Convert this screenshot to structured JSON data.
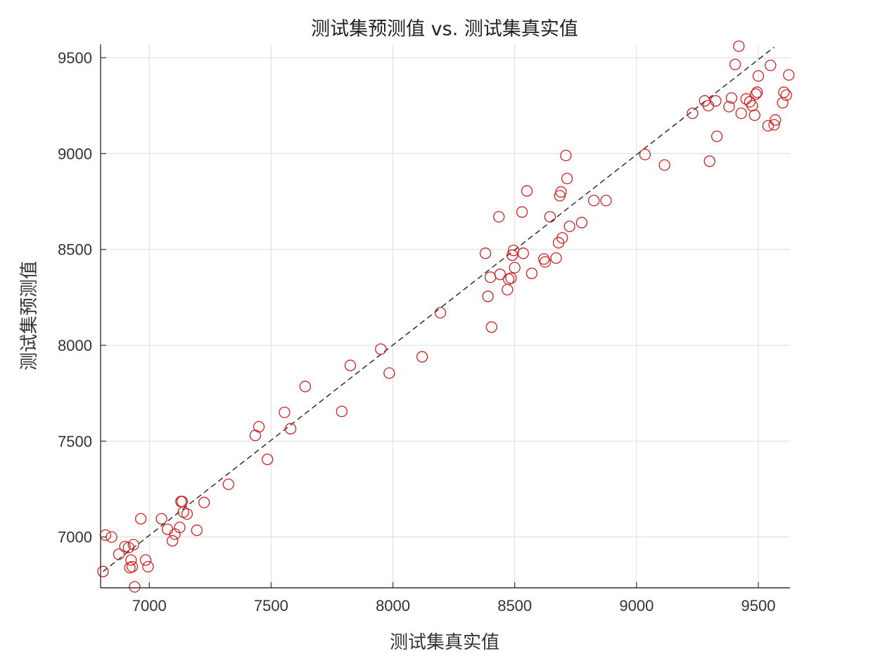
{
  "chart_data": {
    "type": "scatter",
    "title": "测试集预测值 vs. 测试集真实值",
    "xlabel": "测试集真实值",
    "ylabel": "测试集预测值",
    "xlim": [
      6800,
      9630
    ],
    "ylim": [
      6735,
      9570
    ],
    "x_ticks": [
      7000,
      7500,
      8000,
      8500,
      9000,
      9500
    ],
    "y_ticks": [
      7000,
      7500,
      8000,
      8500,
      9000,
      9500
    ],
    "x_tick_labels": [
      "7000",
      "7500",
      "8000",
      "8500",
      "9000",
      "9500"
    ],
    "y_tick_labels": [
      "7000",
      "7500",
      "8000",
      "8500",
      "9000",
      "9500"
    ],
    "grid": true,
    "marker": "open-circle",
    "marker_color": "#cc2222",
    "reference_line": {
      "style": "dashed",
      "color": "#222222",
      "from": [
        6810,
        6820
      ],
      "to": [
        9565,
        9555
      ]
    },
    "points": [
      [
        6810,
        6820
      ],
      [
        6820,
        7010
      ],
      [
        6845,
        7000
      ],
      [
        6875,
        6910
      ],
      [
        6900,
        6950
      ],
      [
        6915,
        6945
      ],
      [
        6920,
        6840
      ],
      [
        6925,
        6880
      ],
      [
        6930,
        6845
      ],
      [
        6935,
        6960
      ],
      [
        6940,
        6740
      ],
      [
        6965,
        7095
      ],
      [
        6985,
        6880
      ],
      [
        6995,
        6845
      ],
      [
        7050,
        7095
      ],
      [
        7075,
        7040
      ],
      [
        7095,
        6980
      ],
      [
        7105,
        7015
      ],
      [
        7125,
        7050
      ],
      [
        7130,
        7185
      ],
      [
        7135,
        7185
      ],
      [
        7140,
        7130
      ],
      [
        7155,
        7120
      ],
      [
        7195,
        7035
      ],
      [
        7225,
        7180
      ],
      [
        7325,
        7275
      ],
      [
        7435,
        7530
      ],
      [
        7450,
        7575
      ],
      [
        7485,
        7405
      ],
      [
        7555,
        7650
      ],
      [
        7580,
        7565
      ],
      [
        7640,
        7785
      ],
      [
        7790,
        7655
      ],
      [
        7825,
        7895
      ],
      [
        7950,
        7980
      ],
      [
        7985,
        7855
      ],
      [
        8120,
        7940
      ],
      [
        8195,
        8170
      ],
      [
        8380,
        8480
      ],
      [
        8390,
        8255
      ],
      [
        8400,
        8355
      ],
      [
        8405,
        8095
      ],
      [
        8435,
        8670
      ],
      [
        8440,
        8370
      ],
      [
        8470,
        8290
      ],
      [
        8475,
        8345
      ],
      [
        8485,
        8350
      ],
      [
        8490,
        8470
      ],
      [
        8495,
        8495
      ],
      [
        8500,
        8405
      ],
      [
        8530,
        8695
      ],
      [
        8535,
        8480
      ],
      [
        8550,
        8805
      ],
      [
        8570,
        8375
      ],
      [
        8620,
        8450
      ],
      [
        8625,
        8435
      ],
      [
        8645,
        8670
      ],
      [
        8670,
        8455
      ],
      [
        8680,
        8535
      ],
      [
        8685,
        8780
      ],
      [
        8690,
        8800
      ],
      [
        8695,
        8560
      ],
      [
        8710,
        8990
      ],
      [
        8715,
        8870
      ],
      [
        8725,
        8620
      ],
      [
        8775,
        8640
      ],
      [
        8825,
        8755
      ],
      [
        8875,
        8755
      ],
      [
        9035,
        8995
      ],
      [
        9115,
        8940
      ],
      [
        9230,
        9210
      ],
      [
        9280,
        9275
      ],
      [
        9295,
        9250
      ],
      [
        9300,
        8960
      ],
      [
        9325,
        9275
      ],
      [
        9330,
        9090
      ],
      [
        9380,
        9245
      ],
      [
        9390,
        9290
      ],
      [
        9405,
        9465
      ],
      [
        9420,
        9560
      ],
      [
        9430,
        9210
      ],
      [
        9450,
        9285
      ],
      [
        9465,
        9270
      ],
      [
        9475,
        9250
      ],
      [
        9485,
        9200
      ],
      [
        9490,
        9310
      ],
      [
        9495,
        9320
      ],
      [
        9500,
        9405
      ],
      [
        9540,
        9145
      ],
      [
        9550,
        9460
      ],
      [
        9565,
        9150
      ],
      [
        9570,
        9175
      ],
      [
        9600,
        9265
      ],
      [
        9605,
        9320
      ],
      [
        9615,
        9305
      ],
      [
        9625,
        9410
      ]
    ]
  }
}
